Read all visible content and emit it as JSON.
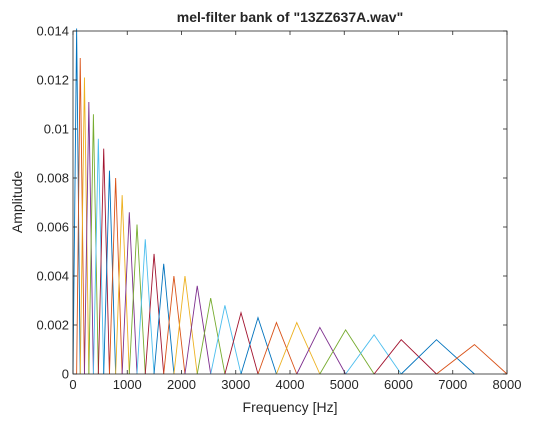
{
  "chart_data": {
    "type": "line",
    "title": "mel-filter bank of \"13ZZ637A.wav\"",
    "xlabel": "Frequency [Hz]",
    "ylabel": "Amplitude",
    "xlim": [
      0,
      8000
    ],
    "ylim": [
      0,
      0.014
    ],
    "xticks": [
      "0",
      "1000",
      "2000",
      "3000",
      "4000",
      "5000",
      "6000",
      "7000",
      "8000"
    ],
    "yticks": [
      "0",
      "0.002",
      "0.004",
      "0.006",
      "0.008",
      "0.01",
      "0.012",
      "0.014"
    ],
    "grid": false,
    "legend": "none",
    "palette": [
      "#0072BD",
      "#D95319",
      "#EDB120",
      "#7E2F8E",
      "#77AC30",
      "#4DBEEE",
      "#A2142F"
    ],
    "series": [
      {
        "x": [
          0,
          67,
          133
        ],
        "y": [
          0,
          0.0141,
          0
        ]
      },
      {
        "x": [
          67,
          133,
          211
        ],
        "y": [
          0,
          0.0129,
          0
        ]
      },
      {
        "x": [
          133,
          211,
          292
        ],
        "y": [
          0,
          0.0121,
          0
        ]
      },
      {
        "x": [
          211,
          292,
          376
        ],
        "y": [
          0,
          0.0111,
          0
        ]
      },
      {
        "x": [
          292,
          376,
          467
        ],
        "y": [
          0,
          0.0106,
          0
        ]
      },
      {
        "x": [
          376,
          467,
          566
        ],
        "y": [
          0,
          0.0096,
          0
        ]
      },
      {
        "x": [
          467,
          566,
          672
        ],
        "y": [
          0,
          0.0092,
          0
        ]
      },
      {
        "x": [
          566,
          672,
          786
        ],
        "y": [
          0,
          0.0083,
          0
        ]
      },
      {
        "x": [
          672,
          786,
          906
        ],
        "y": [
          0,
          0.008,
          0
        ]
      },
      {
        "x": [
          786,
          906,
          1038
        ],
        "y": [
          0,
          0.0073,
          0
        ]
      },
      {
        "x": [
          906,
          1038,
          1180
        ],
        "y": [
          0,
          0.0066,
          0
        ]
      },
      {
        "x": [
          1038,
          1180,
          1332
        ],
        "y": [
          0,
          0.0061,
          0
        ]
      },
      {
        "x": [
          1180,
          1332,
          1494
        ],
        "y": [
          0,
          0.0055,
          0
        ]
      },
      {
        "x": [
          1332,
          1494,
          1672
        ],
        "y": [
          0,
          0.0049,
          0
        ]
      },
      {
        "x": [
          1494,
          1672,
          1860
        ],
        "y": [
          0,
          0.0045,
          0
        ]
      },
      {
        "x": [
          1672,
          1860,
          2064
        ],
        "y": [
          0,
          0.004,
          0
        ]
      },
      {
        "x": [
          1860,
          2064,
          2290
        ],
        "y": [
          0,
          0.004,
          0
        ]
      },
      {
        "x": [
          2064,
          2290,
          2538
        ],
        "y": [
          0,
          0.0036,
          0
        ]
      },
      {
        "x": [
          2290,
          2538,
          2800
        ],
        "y": [
          0,
          0.0031,
          0
        ]
      },
      {
        "x": [
          2538,
          2800,
          3097
        ],
        "y": [
          0,
          0.0028,
          0
        ]
      },
      {
        "x": [
          2800,
          3097,
          3410
        ],
        "y": [
          0,
          0.0025,
          0
        ]
      },
      {
        "x": [
          3097,
          3410,
          3750
        ],
        "y": [
          0,
          0.0023,
          0
        ]
      },
      {
        "x": [
          3410,
          3750,
          4125
        ],
        "y": [
          0,
          0.0021,
          0
        ]
      },
      {
        "x": [
          3750,
          4125,
          4550
        ],
        "y": [
          0,
          0.0021,
          0
        ]
      },
      {
        "x": [
          4125,
          4550,
          5025
        ],
        "y": [
          0,
          0.0019,
          0
        ]
      },
      {
        "x": [
          4550,
          5025,
          5550
        ],
        "y": [
          0,
          0.0018,
          0
        ]
      },
      {
        "x": [
          5025,
          5550,
          6050
        ],
        "y": [
          0,
          0.0016,
          0
        ]
      },
      {
        "x": [
          5550,
          6050,
          6700
        ],
        "y": [
          0,
          0.0014,
          0
        ]
      },
      {
        "x": [
          6050,
          6700,
          7400
        ],
        "y": [
          0,
          0.0014,
          0
        ]
      },
      {
        "x": [
          6700,
          7400,
          8000
        ],
        "y": [
          0,
          0.0012,
          0
        ]
      }
    ]
  }
}
